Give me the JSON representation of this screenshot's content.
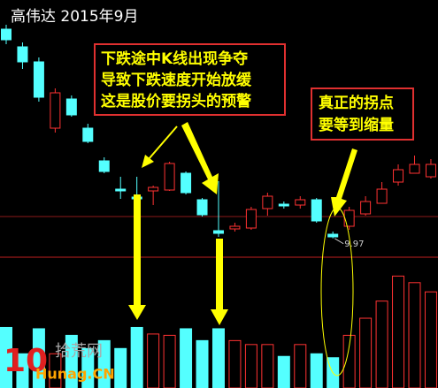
{
  "chart_data": {
    "type": "candlestick",
    "title": "高伟达 2015年9月",
    "ylim": [
      9,
      20.6
    ],
    "up_color": "#ff3232",
    "down_color": "#54ffff",
    "candles": [
      {
        "open": 19.44,
        "high": 19.64,
        "low": 18.76,
        "close": 18.96
      },
      {
        "open": 18.64,
        "high": 18.84,
        "low": 17.64,
        "close": 17.96
      },
      {
        "open": 17.96,
        "high": 18.16,
        "low": 16.16,
        "close": 16.36
      },
      {
        "open": 14.96,
        "high": 16.76,
        "low": 14.76,
        "close": 16.56
      },
      {
        "open": 16.28,
        "high": 16.44,
        "low": 15.48,
        "close": 15.56
      },
      {
        "open": 14.96,
        "high": 15.16,
        "low": 14.28,
        "close": 14.36
      },
      {
        "open": 13.48,
        "high": 13.64,
        "low": 12.92,
        "close": 13.0
      },
      {
        "open": 12.2,
        "high": 12.76,
        "low": 11.76,
        "close": 12.12
      },
      {
        "open": 11.84,
        "high": 12.76,
        "low": 11.48,
        "close": 11.76
      },
      {
        "open": 12.12,
        "high": 12.36,
        "low": 11.48,
        "close": 12.28
      },
      {
        "open": 12.16,
        "high": 13.44,
        "low": 12.12,
        "close": 13.36
      },
      {
        "open": 12.92,
        "high": 13.0,
        "low": 11.96,
        "close": 12.04
      },
      {
        "open": 11.72,
        "high": 11.8,
        "low": 10.96,
        "close": 11.04
      },
      {
        "open": 10.32,
        "high": 12.56,
        "low": 10.04,
        "close": 10.2
      },
      {
        "open": 10.4,
        "high": 10.68,
        "low": 10.28,
        "close": 10.52
      },
      {
        "open": 10.44,
        "high": 11.4,
        "low": 10.36,
        "close": 11.28
      },
      {
        "open": 11.32,
        "high": 12.04,
        "low": 11.0,
        "close": 11.88
      },
      {
        "open": 11.52,
        "high": 11.64,
        "low": 11.32,
        "close": 11.44
      },
      {
        "open": 11.48,
        "high": 11.88,
        "low": 11.32,
        "close": 11.72
      },
      {
        "open": 11.72,
        "high": 11.8,
        "low": 10.68,
        "close": 10.76
      },
      {
        "open": 10.16,
        "high": 10.28,
        "low": 9.97,
        "close": 10.04
      },
      {
        "open": 10.52,
        "high": 11.4,
        "low": 10.36,
        "close": 11.24
      },
      {
        "open": 11.08,
        "high": 11.88,
        "low": 11.0,
        "close": 11.64
      },
      {
        "open": 11.56,
        "high": 12.52,
        "low": 11.56,
        "close": 12.2
      },
      {
        "open": 12.52,
        "high": 13.32,
        "low": 12.36,
        "close": 13.08
      },
      {
        "open": 12.92,
        "high": 13.72,
        "low": 12.92,
        "close": 13.32
      },
      {
        "open": 12.76,
        "high": 13.56,
        "low": 12.68,
        "close": 13.32
      }
    ],
    "low_label": "9.97",
    "volume": {
      "ylim": [
        0,
        100
      ],
      "values": [
        46,
        26,
        45,
        26,
        40,
        30,
        36,
        30,
        46,
        41,
        40,
        45,
        36,
        45,
        36,
        33,
        33,
        24,
        33,
        26,
        23,
        40,
        53,
        66,
        85,
        80,
        73
      ]
    },
    "annotations": [
      [
        "下跌途中K线出现争夺",
        "导致下跌速度开始放缓",
        "这是股价要拐头的预警"
      ],
      [
        "真正的拐点",
        "要等到缩量"
      ]
    ],
    "logo": {
      "number": "10",
      "name": "拾荒网",
      "url": "Hunag.CN"
    }
  }
}
